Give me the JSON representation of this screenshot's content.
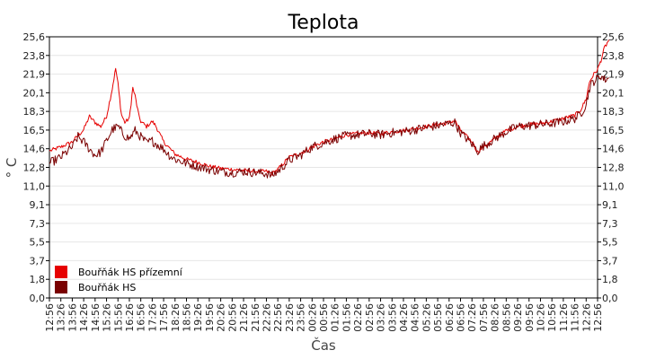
{
  "chart_data": {
    "type": "line",
    "title": "Teplota",
    "xlabel": "Čas",
    "ylabel": "° C",
    "ylim": [
      0,
      25.6
    ],
    "yticks": [
      "0,0",
      "1,8",
      "3,7",
      "5,5",
      "7,3",
      "9,1",
      "11,0",
      "12,8",
      "14,6",
      "16,5",
      "18,3",
      "20,1",
      "21,9",
      "23,8",
      "25,6"
    ],
    "xticks": [
      "12:56",
      "13:26",
      "13:56",
      "14:26",
      "14:56",
      "15:26",
      "15:56",
      "16:26",
      "16:56",
      "17:26",
      "17:56",
      "18:26",
      "18:56",
      "19:26",
      "19:56",
      "20:26",
      "20:56",
      "21:26",
      "21:56",
      "22:26",
      "22:56",
      "23:26",
      "23:56",
      "00:26",
      "00:56",
      "01:26",
      "01:56",
      "02:26",
      "02:56",
      "03:26",
      "03:56",
      "04:26",
      "04:56",
      "05:26",
      "05:56",
      "06:26",
      "06:56",
      "07:26",
      "07:56",
      "08:26",
      "08:56",
      "09:26",
      "09:56",
      "10:26",
      "10:56",
      "11:26",
      "11:56",
      "12:26",
      "12:56"
    ],
    "grid": true,
    "legend_position": "bottom-left",
    "series": [
      {
        "name": "Bouřňák HS přízemní",
        "color": "#e60000",
        "points": [
          [
            0,
            14.4
          ],
          [
            1,
            14.8
          ],
          [
            2,
            15.3
          ],
          [
            3,
            16.5
          ],
          [
            3.5,
            17.8
          ],
          [
            4,
            17.2
          ],
          [
            4.5,
            16.8
          ],
          [
            5,
            17.8
          ],
          [
            5.5,
            20.5
          ],
          [
            5.8,
            22.5
          ],
          [
            6,
            21.0
          ],
          [
            6.3,
            18.0
          ],
          [
            6.6,
            17.2
          ],
          [
            7,
            17.6
          ],
          [
            7.3,
            20.6
          ],
          [
            7.5,
            19.8
          ],
          [
            7.8,
            18.0
          ],
          [
            8,
            17.3
          ],
          [
            8.5,
            16.8
          ],
          [
            9,
            17.3
          ],
          [
            9.3,
            16.9
          ],
          [
            9.6,
            16.2
          ],
          [
            10,
            15.3
          ],
          [
            10.5,
            14.7
          ],
          [
            11,
            14.1
          ],
          [
            12,
            13.6
          ],
          [
            13,
            13.3
          ],
          [
            14,
            12.9
          ],
          [
            15,
            12.7
          ],
          [
            16,
            12.6
          ],
          [
            17,
            12.5
          ],
          [
            18,
            12.4
          ],
          [
            19,
            12.4
          ],
          [
            19.5,
            12.2
          ],
          [
            20,
            12.6
          ],
          [
            21,
            13.8
          ],
          [
            22,
            14.2
          ],
          [
            23,
            14.8
          ],
          [
            24,
            15.3
          ],
          [
            25,
            15.6
          ],
          [
            26,
            16.0
          ],
          [
            27,
            16.1
          ],
          [
            28,
            16.2
          ],
          [
            29,
            16.1
          ],
          [
            30,
            16.3
          ],
          [
            31,
            16.4
          ],
          [
            32,
            16.6
          ],
          [
            33,
            16.8
          ],
          [
            34,
            17.0
          ],
          [
            35,
            17.2
          ],
          [
            35.5,
            17.4
          ],
          [
            36,
            16.4
          ],
          [
            37,
            15.3
          ],
          [
            37.5,
            14.3
          ],
          [
            38,
            14.8
          ],
          [
            39,
            15.6
          ],
          [
            40,
            16.4
          ],
          [
            41,
            16.8
          ],
          [
            42,
            17.0
          ],
          [
            43,
            17.1
          ],
          [
            44,
            17.3
          ],
          [
            45,
            17.6
          ],
          [
            46,
            17.9
          ],
          [
            46.5,
            18.4
          ],
          [
            47,
            19.5
          ],
          [
            47.3,
            21.2
          ],
          [
            47.6,
            21.8
          ],
          [
            48,
            22.4
          ],
          [
            48.3,
            23.3
          ],
          [
            48.6,
            24.5
          ],
          [
            49,
            25.3
          ]
        ]
      },
      {
        "name": "Bouřňák HS",
        "color": "#7a0000",
        "points": [
          [
            0,
            13.2
          ],
          [
            1,
            13.8
          ],
          [
            2,
            14.8
          ],
          [
            2.5,
            15.8
          ],
          [
            3,
            15.3
          ],
          [
            3.5,
            14.6
          ],
          [
            4,
            14.0
          ],
          [
            4.5,
            14.3
          ],
          [
            5,
            15.4
          ],
          [
            5.5,
            16.5
          ],
          [
            6,
            16.8
          ],
          [
            6.5,
            16.0
          ],
          [
            7,
            15.6
          ],
          [
            7.5,
            16.4
          ],
          [
            8,
            15.8
          ],
          [
            8.5,
            15.2
          ],
          [
            9,
            15.4
          ],
          [
            9.5,
            15.0
          ],
          [
            10,
            14.6
          ],
          [
            10.5,
            14.0
          ],
          [
            11,
            13.6
          ],
          [
            12,
            13.2
          ],
          [
            13,
            12.9
          ],
          [
            14,
            12.6
          ],
          [
            15,
            12.4
          ],
          [
            16,
            12.3
          ],
          [
            17,
            12.4
          ],
          [
            18,
            12.3
          ],
          [
            19,
            12.2
          ],
          [
            19.5,
            12.0
          ],
          [
            20,
            12.4
          ],
          [
            21,
            13.5
          ],
          [
            22,
            14.0
          ],
          [
            23,
            14.8
          ],
          [
            24,
            15.2
          ],
          [
            25,
            15.6
          ],
          [
            26,
            15.9
          ],
          [
            27,
            16.0
          ],
          [
            28,
            16.1
          ],
          [
            29,
            16.0
          ],
          [
            30,
            16.2
          ],
          [
            31,
            16.3
          ],
          [
            32,
            16.5
          ],
          [
            33,
            16.7
          ],
          [
            34,
            16.9
          ],
          [
            35,
            17.1
          ],
          [
            35.5,
            17.2
          ],
          [
            36,
            16.2
          ],
          [
            37,
            15.1
          ],
          [
            37.5,
            14.4
          ],
          [
            38,
            14.9
          ],
          [
            39,
            15.6
          ],
          [
            40,
            16.3
          ],
          [
            41,
            16.8
          ],
          [
            42,
            16.9
          ],
          [
            43,
            17.0
          ],
          [
            44,
            17.1
          ],
          [
            45,
            17.3
          ],
          [
            46,
            17.6
          ],
          [
            46.5,
            18.0
          ],
          [
            47,
            19.0
          ],
          [
            47.3,
            20.6
          ],
          [
            47.6,
            21.2
          ],
          [
            48,
            21.5
          ],
          [
            48.3,
            21.8
          ],
          [
            48.6,
            21.4
          ],
          [
            49,
            21.6
          ]
        ]
      }
    ]
  }
}
